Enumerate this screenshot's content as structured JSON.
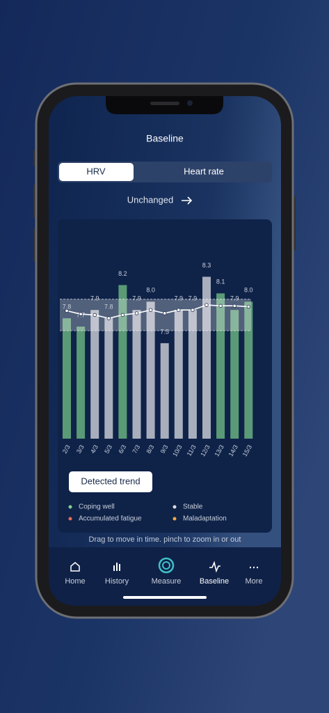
{
  "header": {
    "title": "Baseline"
  },
  "tabs": [
    "HRV",
    "Heart rate"
  ],
  "status": "Unchanged",
  "chart_data": {
    "type": "bar",
    "categories": [
      "2/3",
      "3/3",
      "4/3",
      "5/3",
      "6/3",
      "7/3",
      "8/3",
      "9/3",
      "10/3",
      "11/3",
      "12/3",
      "13/3",
      "14/3",
      "15/3"
    ],
    "values": [
      7.8,
      7.7,
      7.9,
      7.8,
      8.2,
      7.9,
      8.0,
      7.5,
      7.9,
      7.9,
      8.3,
      8.1,
      7.9,
      8.0
    ],
    "value_labels": [
      "7.8",
      "7.7",
      "7.9",
      "7.8",
      "8.2",
      "7.9",
      "8.0",
      "7.5",
      "7.9",
      "7.9",
      "8.3",
      "8.1",
      "7.9",
      "8.0"
    ],
    "colors": [
      "#5a9a76",
      "#5a9a76",
      "#a9aebd",
      "#a9aebd",
      "#5a9a76",
      "#a9aebd",
      "#a9aebd",
      "#a9aebd",
      "#a9aebd",
      "#a9aebd",
      "#a9aebd",
      "#5a9a76",
      "#5a9a76",
      "#5a9a76"
    ],
    "line_values": [
      7.89,
      7.85,
      7.84,
      7.8,
      7.84,
      7.86,
      7.9,
      7.86,
      7.9,
      7.9,
      7.96,
      7.95,
      7.95,
      7.94
    ],
    "band": [
      7.65,
      8.03
    ],
    "ylim": [
      6.35,
      8.95
    ],
    "legend": [
      {
        "label": "Coping well",
        "color": "#7fd18f"
      },
      {
        "label": "Stable",
        "color": "#dddddd"
      },
      {
        "label": "Accumulated fatigue",
        "color": "#e86a5a"
      },
      {
        "label": "Maladaptation",
        "color": "#f0a94a"
      }
    ]
  },
  "button": "Detected trend",
  "hint": "Drag to move in time. pinch to zoom in or out",
  "nav": [
    "Home",
    "History",
    "Measure",
    "Baseline",
    "More"
  ]
}
